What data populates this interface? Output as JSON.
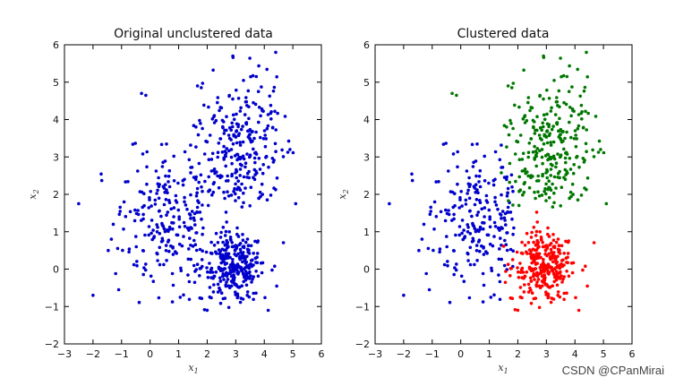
{
  "chart_data": [
    {
      "type": "scatter",
      "title": "Original unclustered data",
      "xlabel": "x1",
      "ylabel": "x2",
      "xlim": [
        -3,
        6
      ],
      "ylim": [
        -2,
        6
      ],
      "xticks": [
        -3,
        -2,
        -1,
        0,
        1,
        2,
        3,
        4,
        5,
        6
      ],
      "yticks": [
        -2,
        -1,
        0,
        1,
        2,
        3,
        4,
        5,
        6
      ],
      "grid": false,
      "series": [
        {
          "color": "#0000cc",
          "clusters": [
            "A",
            "B",
            "C"
          ]
        }
      ]
    },
    {
      "type": "scatter",
      "title": "Clustered data",
      "xlabel": "x1",
      "ylabel": "x2",
      "xlim": [
        -3,
        6
      ],
      "ylim": [
        -2,
        6
      ],
      "xticks": [
        -3,
        -2,
        -1,
        0,
        1,
        2,
        3,
        4,
        5,
        6
      ],
      "yticks": [
        -2,
        -1,
        0,
        1,
        2,
        3,
        4,
        5,
        6
      ],
      "grid": false,
      "series": [
        {
          "color": "#0000cc",
          "clusters": [
            "A"
          ]
        },
        {
          "color": "#ff0000",
          "clusters": [
            "B"
          ]
        },
        {
          "color": "#007700",
          "clusters": [
            "C"
          ]
        }
      ]
    }
  ],
  "clusters": {
    "A": {
      "center": [
        0.6,
        1.3
      ],
      "spread": [
        0.95,
        0.95
      ],
      "count": 230
    },
    "B": {
      "center": [
        2.9,
        0.05
      ],
      "spread": [
        0.55,
        0.45
      ],
      "count": 300
    },
    "C": {
      "center": [
        3.1,
        3.3
      ],
      "spread": [
        0.75,
        1.0
      ],
      "count": 280
    }
  },
  "extra_points": [
    [
      -2.5,
      1.75
    ],
    [
      -0.3,
      4.7
    ],
    [
      -0.15,
      4.65
    ],
    [
      -2.0,
      -0.7
    ],
    [
      -1.1,
      -0.55
    ],
    [
      4.4,
      5.8
    ],
    [
      5.1,
      1.75
    ],
    [
      4.9,
      3.2
    ],
    [
      2.0,
      -1.1
    ],
    [
      2.9,
      5.7
    ]
  ],
  "watermark": "CSDN @CPanMirai"
}
